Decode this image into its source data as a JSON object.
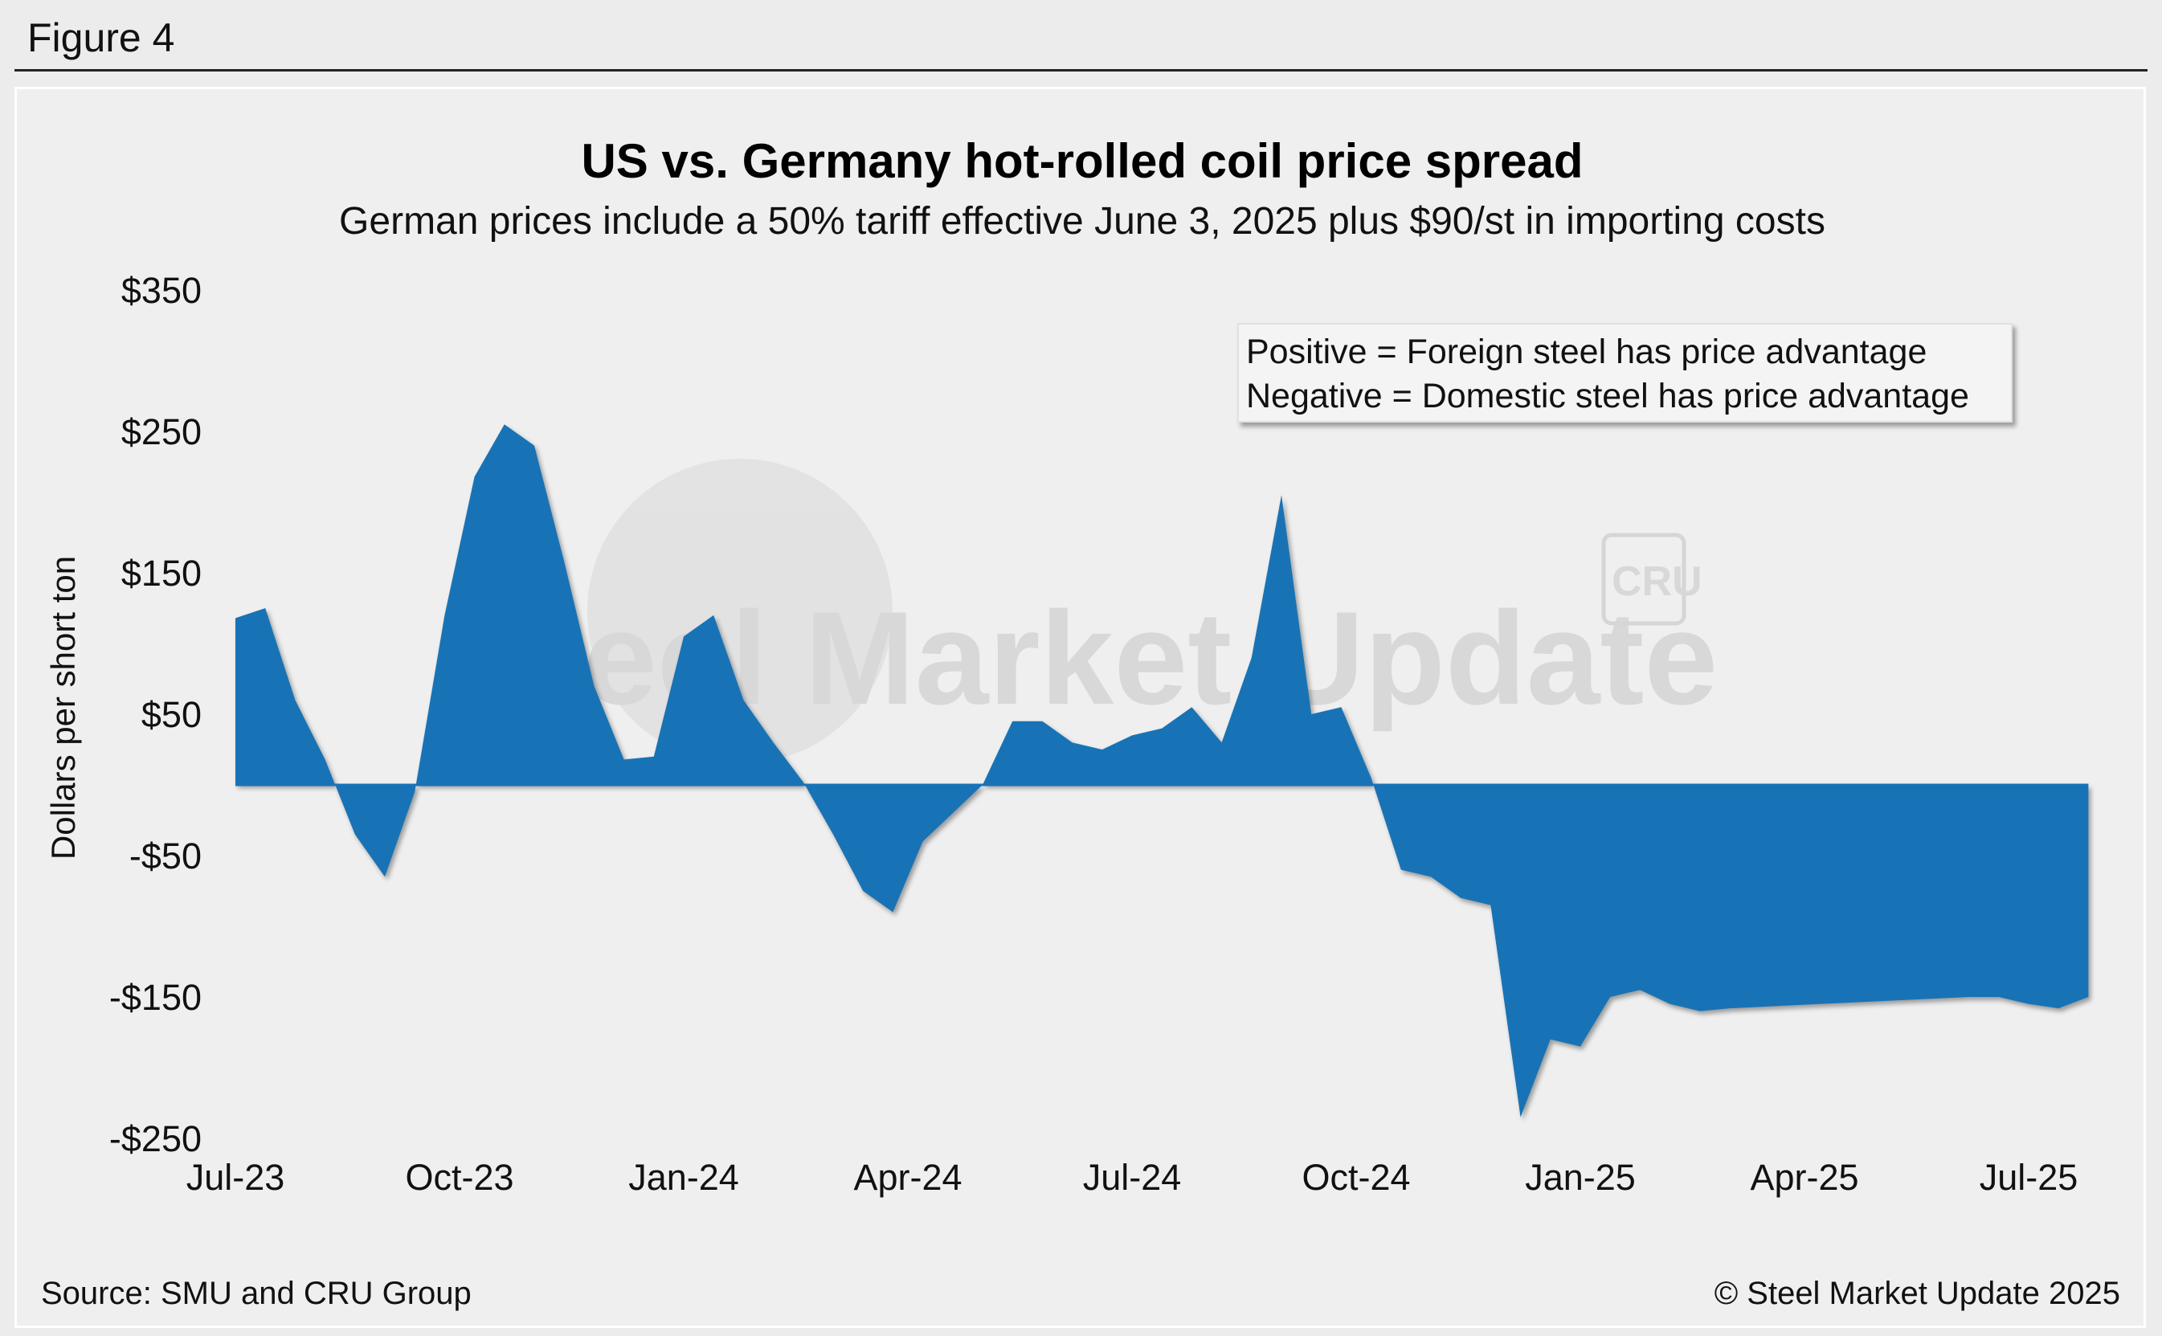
{
  "figure_label": "Figure 4",
  "source": "Source: SMU and CRU Group",
  "copyright": "© Steel Market Update 2025",
  "watermark": {
    "brand": "Steel Market Update",
    "logo": "CRU"
  },
  "legend_note": [
    "Positive = Foreign steel has price advantage",
    "Negative = Domestic steel has price advantage"
  ],
  "colors": {
    "area": "#1873b6",
    "background": "#efefef"
  },
  "chart_data": {
    "type": "area",
    "title": "US vs. Germany hot-rolled coil price spread",
    "subtitle": "German prices include a 50% tariff effective June 3, 2025 plus $90/st in importing costs",
    "ylabel": "Dollars per short ton",
    "xlabel": "",
    "ylim": [
      -250,
      350
    ],
    "yticks": [
      350,
      250,
      150,
      50,
      -50,
      -150,
      -250
    ],
    "ytick_labels": [
      "$350",
      "$250",
      "$150",
      "$50",
      "-$50",
      "-$150",
      "-$250"
    ],
    "xtick_labels": [
      "Jul-23",
      "Oct-23",
      "Jan-24",
      "Apr-24",
      "Jul-24",
      "Oct-24",
      "Jan-25",
      "Apr-25",
      "Jul-25"
    ],
    "x_unit": "months since Jul-23 (tick i = 3*i months)",
    "x": [
      0,
      0.4,
      0.8,
      1.2,
      1.6,
      2.0,
      2.4,
      2.8,
      3.2,
      3.6,
      4.0,
      4.4,
      4.8,
      5.2,
      5.6,
      6.0,
      6.4,
      6.8,
      7.2,
      7.6,
      8.0,
      8.4,
      8.8,
      9.2,
      9.6,
      10.0,
      10.4,
      10.8,
      11.2,
      11.6,
      12.0,
      12.4,
      12.8,
      13.2,
      13.6,
      14.0,
      14.4,
      14.8,
      15.2,
      15.6,
      16.0,
      16.4,
      16.8,
      17.2,
      17.6,
      18.0,
      18.4,
      18.8,
      19.2,
      19.6,
      20.0,
      20.4,
      20.8,
      21.2,
      21.6,
      22.0,
      22.4,
      22.8,
      23.2,
      23.6,
      24.0,
      24.4,
      24.8
    ],
    "values": [
      118,
      125,
      60,
      18,
      -35,
      -65,
      -5,
      120,
      218,
      255,
      240,
      158,
      70,
      18,
      20,
      105,
      120,
      60,
      30,
      2,
      -35,
      -75,
      -90,
      -40,
      -20,
      0,
      45,
      45,
      30,
      25,
      35,
      40,
      55,
      30,
      90,
      205,
      50,
      55,
      5,
      -60,
      -65,
      -80,
      -85,
      -235,
      -180,
      -185,
      -150,
      -145,
      -155,
      -160,
      -158,
      -157,
      -156,
      -155,
      -154,
      -153,
      -152,
      -151,
      -150,
      -150,
      -155,
      -158,
      -150
    ]
  }
}
